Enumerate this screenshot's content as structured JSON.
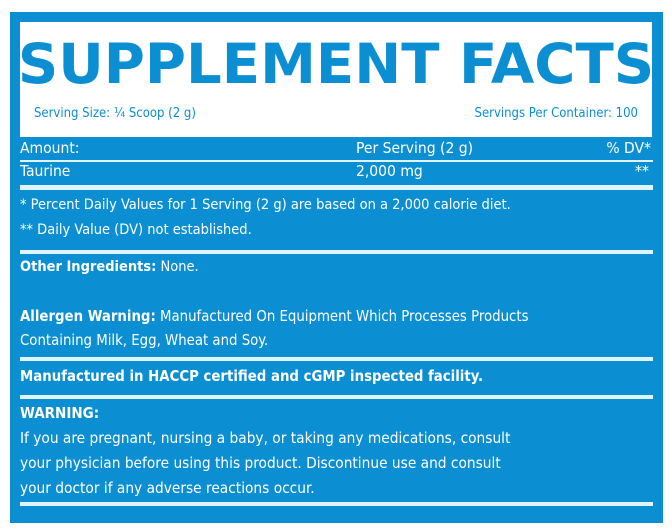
{
  "title": "SUPPLEMENT FACTS",
  "serving_size": "Serving Size: ¼ Scoop (2 g)",
  "servings_per_container": "Servings Per Container: 100",
  "table": {
    "headers": [
      "Amount:",
      "Per Serving (2 g)",
      "% DV*"
    ],
    "rows": [
      {
        "name": "Taurine",
        "amount": "2,000 mg",
        "dv": "**"
      }
    ]
  },
  "footnotes": [
    "* Percent Daily Values for 1 Serving (2 g) are based on a 2,000 calorie diet.",
    "** Daily Value (DV) not established."
  ],
  "other_ingredients": {
    "label": "Other Ingredients:",
    "value": " None."
  },
  "allergen": {
    "label": "Allergen Warning:",
    "value": " Manufactured On Equipment Which Processes Products",
    "value2": "Containing Milk, Egg, Wheat and Soy."
  },
  "facility": "Manufactured in HACCP certified and cGMP inspected facility.",
  "warning": {
    "label": "WARNING:",
    "lines": [
      "If you are pregnant, nursing a baby, or taking any medications, consult",
      "your physician before using this product. Discontinue use and consult",
      "your doctor if any adverse reactions occur."
    ]
  },
  "colors": {
    "brand_blue": "#0b8fd2"
  }
}
